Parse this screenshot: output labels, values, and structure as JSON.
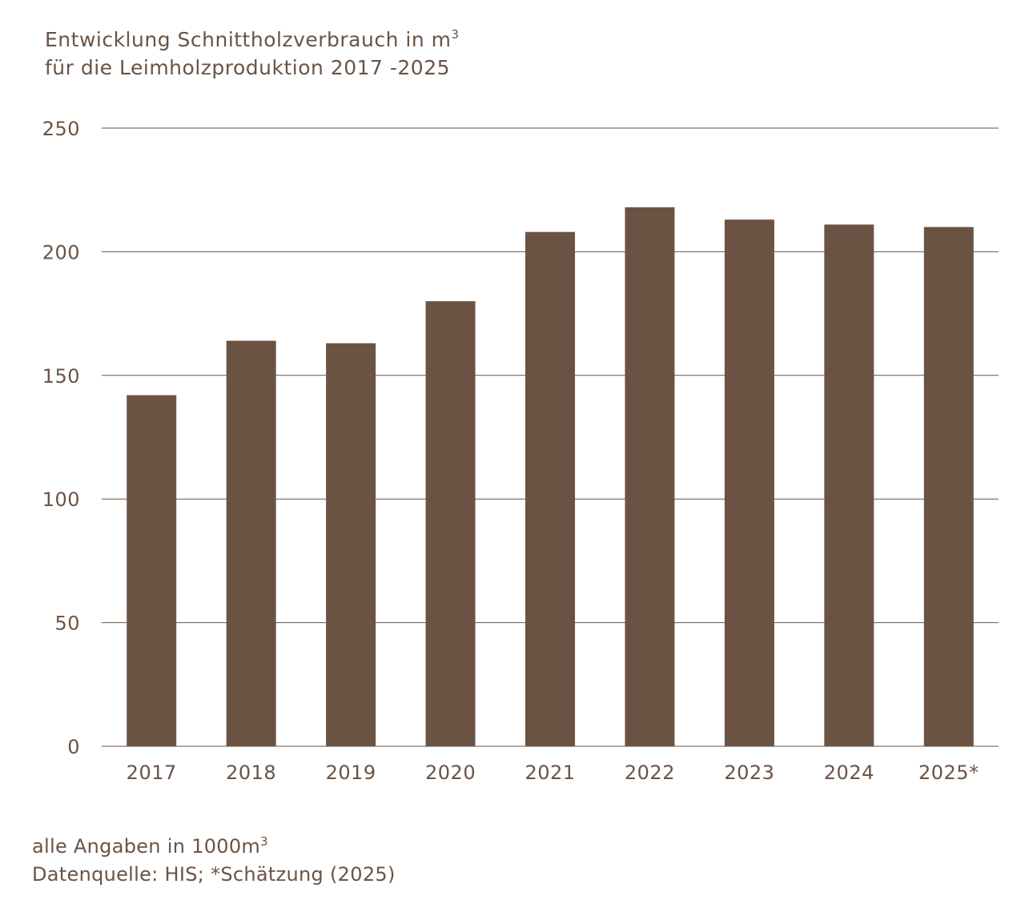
{
  "chart_data": {
    "type": "bar",
    "title_line1": "Entwicklung Schnittholzverbrauch in m",
    "title_sup": "3",
    "title_line2": "für die Leimholzproduktion 2017 -2025",
    "categories": [
      "2017",
      "2018",
      "2019",
      "2020",
      "2021",
      "2022",
      "2023",
      "2024",
      "2025*"
    ],
    "values": [
      142,
      164,
      163,
      180,
      208,
      218,
      213,
      211,
      210
    ],
    "ylim": [
      0,
      250
    ],
    "yticks": [
      0,
      50,
      100,
      150,
      200,
      250
    ],
    "grid": true,
    "xlabel": "",
    "ylabel": "",
    "bar_color": "#6b5344",
    "text_color": "#6b5344"
  },
  "footer": {
    "line1": "alle Angaben in 1000m",
    "line1_sup": "3",
    "line2": "Datenquelle: HIS; *Schätzung (2025)"
  }
}
